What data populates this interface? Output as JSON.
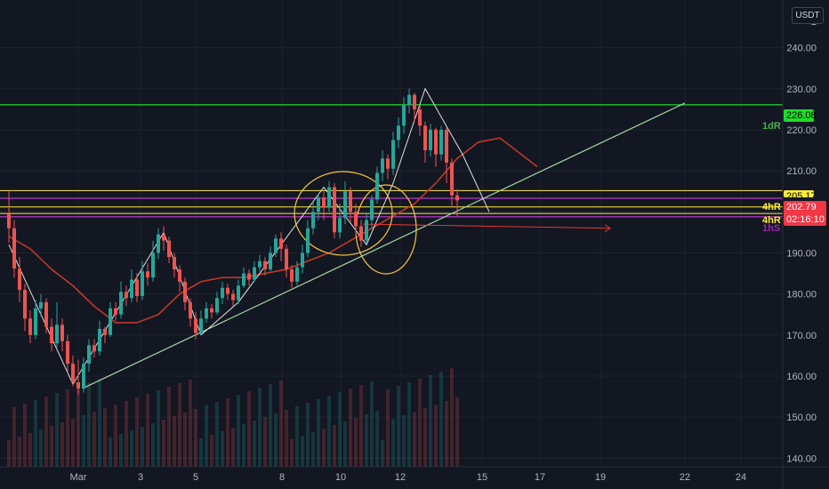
{
  "quote_currency": "USDT",
  "chart_data": {
    "type": "candlestick",
    "y_axis": {
      "min": 140,
      "max": 250,
      "ticks": [
        140,
        150,
        160,
        170,
        180,
        190,
        200,
        210,
        220,
        230,
        240
      ],
      "tick_labels": [
        "140.00",
        "150.00",
        "160.00",
        "170.00",
        "180.00",
        "190.00",
        "200.00",
        "210.00",
        "220.00",
        "230.00",
        "240.00"
      ],
      "partial_top_label": "2"
    },
    "x_axis": {
      "labels": [
        "Mar",
        "3",
        "5",
        "8",
        "10",
        "12",
        "15",
        "17",
        "19",
        "22",
        "24"
      ]
    },
    "levels": [
      {
        "price": 226.08,
        "label": "226.08",
        "name": "1dR",
        "color": "#1fdb2a"
      },
      {
        "price": 205.17,
        "label": "205.17",
        "color": "#ffeb3b"
      },
      {
        "price": 203.3,
        "name": "4hR",
        "color": "#e040fb"
      },
      {
        "price": 201.2,
        "color": "#ffeb3b"
      },
      {
        "price": 199.6,
        "name": "4hR",
        "color": "#ffeb3b"
      },
      {
        "price": 198.8,
        "name": "1hS",
        "color": "#e040fb"
      }
    ],
    "current_price": "202.79",
    "countdown": "02:16:10",
    "candles": [
      [
        199.5,
        196.0,
        205.0,
        192.5
      ],
      [
        196.0,
        186.2,
        198.0,
        184.0
      ],
      [
        186.2,
        181.0,
        189.0,
        178.0
      ],
      [
        181.0,
        174.0,
        182.5,
        171.0
      ],
      [
        174.0,
        170.0,
        176.0,
        168.0
      ],
      [
        170.0,
        176.5,
        178.5,
        169.0
      ],
      [
        176.5,
        178.0,
        180.0,
        174.5
      ],
      [
        178.0,
        172.0,
        179.0,
        170.5
      ],
      [
        172.0,
        168.0,
        174.0,
        166.0
      ],
      [
        168.0,
        172.5,
        178.0,
        167.0
      ],
      [
        172.5,
        168.5,
        174.0,
        166.0
      ],
      [
        168.5,
        163.0,
        170.0,
        161.0
      ],
      [
        163.0,
        158.5,
        165.0,
        157.5
      ],
      [
        158.5,
        157.0,
        164.0,
        155.5
      ],
      [
        157.0,
        163.0,
        164.5,
        156.0
      ],
      [
        163.0,
        167.5,
        169.0,
        161.0
      ],
      [
        167.5,
        166.0,
        169.0,
        164.5
      ],
      [
        166.0,
        171.5,
        173.5,
        165.0
      ],
      [
        171.5,
        170.0,
        172.0,
        168.0
      ],
      [
        170.0,
        176.5,
        178.0,
        169.5
      ],
      [
        176.5,
        175.0,
        178.0,
        173.5
      ],
      [
        175.0,
        180.5,
        183.0,
        174.0
      ],
      [
        180.5,
        179.0,
        182.0,
        177.0
      ],
      [
        179.0,
        183.5,
        186.0,
        178.0
      ],
      [
        183.5,
        179.5,
        185.0,
        178.0
      ],
      [
        179.5,
        185.5,
        188.0,
        178.5
      ],
      [
        185.5,
        184.0,
        187.5,
        182.0
      ],
      [
        184.0,
        190.0,
        193.0,
        183.0
      ],
      [
        190.0,
        194.5,
        196.0,
        188.5
      ],
      [
        194.5,
        193.0,
        196.5,
        190.5
      ],
      [
        193.0,
        189.0,
        194.0,
        187.5
      ],
      [
        189.0,
        186.0,
        190.0,
        184.0
      ],
      [
        186.0,
        183.0,
        187.0,
        180.5
      ],
      [
        183.0,
        178.0,
        184.0,
        176.0
      ],
      [
        178.0,
        174.0,
        179.0,
        172.0
      ],
      [
        174.0,
        170.5,
        175.5,
        169.0
      ],
      [
        170.5,
        174.0,
        176.0,
        170.0
      ],
      [
        174.0,
        176.5,
        178.0,
        173.0
      ],
      [
        176.5,
        175.5,
        177.5,
        174.0
      ],
      [
        175.5,
        179.0,
        180.5,
        175.0
      ],
      [
        179.0,
        181.5,
        183.0,
        177.5
      ],
      [
        181.5,
        180.0,
        182.5,
        178.5
      ],
      [
        180.0,
        178.5,
        181.0,
        177.0
      ],
      [
        178.5,
        182.0,
        183.5,
        177.5
      ],
      [
        182.0,
        185.0,
        186.5,
        181.5
      ],
      [
        185.0,
        183.5,
        186.0,
        182.0
      ],
      [
        183.5,
        186.5,
        188.0,
        183.0
      ],
      [
        186.5,
        188.0,
        189.5,
        185.5
      ],
      [
        188.0,
        186.0,
        189.0,
        184.5
      ],
      [
        186.0,
        190.0,
        191.5,
        185.5
      ],
      [
        190.0,
        193.5,
        194.5,
        189.0
      ],
      [
        193.5,
        191.0,
        195.0,
        188.0
      ],
      [
        191.0,
        186.0,
        192.0,
        184.0
      ],
      [
        186.0,
        183.0,
        187.0,
        181.5
      ],
      [
        183.0,
        186.5,
        188.0,
        182.0
      ],
      [
        186.5,
        190.0,
        192.0,
        185.0
      ],
      [
        190.0,
        196.0,
        198.0,
        189.0
      ],
      [
        196.0,
        200.0,
        202.5,
        194.5
      ],
      [
        200.0,
        203.5,
        204.5,
        198.0
      ],
      [
        203.5,
        201.0,
        205.0,
        198.0
      ],
      [
        201.0,
        206.0,
        207.5,
        200.0
      ],
      [
        206.0,
        195.0,
        207.0,
        193.5
      ],
      [
        195.0,
        198.5,
        202.0,
        193.5
      ],
      [
        198.5,
        205.0,
        207.5,
        197.0
      ],
      [
        205.0,
        200.0,
        206.0,
        197.5
      ],
      [
        200.0,
        196.5,
        202.0,
        194.0
      ],
      [
        196.5,
        193.0,
        198.0,
        191.5
      ],
      [
        193.0,
        198.0,
        199.5,
        192.5
      ],
      [
        198.0,
        203.0,
        204.0,
        196.0
      ],
      [
        203.0,
        209.5,
        211.0,
        202.0
      ],
      [
        209.5,
        213.0,
        215.0,
        207.5
      ],
      [
        213.0,
        210.5,
        214.0,
        208.0
      ],
      [
        210.5,
        217.5,
        219.5,
        209.0
      ],
      [
        217.5,
        221.0,
        223.0,
        215.5
      ],
      [
        221.0,
        226.0,
        228.0,
        219.0
      ],
      [
        226.0,
        228.5,
        230.0,
        224.0
      ],
      [
        228.5,
        225.0,
        229.0,
        222.0
      ],
      [
        225.0,
        221.0,
        226.0,
        218.5
      ],
      [
        221.0,
        215.0,
        222.0,
        212.0
      ],
      [
        215.0,
        220.0,
        221.5,
        213.5
      ],
      [
        220.0,
        214.0,
        220.5,
        211.0
      ],
      [
        214.0,
        220.0,
        221.0,
        212.5
      ],
      [
        220.0,
        212.0,
        220.5,
        207.0
      ],
      [
        212.0,
        204.0,
        213.0,
        201.0
      ],
      [
        204.0,
        202.79,
        205.5,
        199.0
      ]
    ],
    "moving_average": [
      [
        0,
        194
      ],
      [
        4,
        191
      ],
      [
        8,
        186
      ],
      [
        12,
        182
      ],
      [
        16,
        177
      ],
      [
        20,
        173
      ],
      [
        24,
        173
      ],
      [
        28,
        175
      ],
      [
        32,
        180
      ],
      [
        36,
        183
      ],
      [
        40,
        184
      ],
      [
        44,
        184
      ],
      [
        48,
        185
      ],
      [
        52,
        186
      ],
      [
        56,
        188
      ],
      [
        60,
        190
      ],
      [
        64,
        193
      ],
      [
        68,
        196
      ],
      [
        72,
        199
      ],
      [
        76,
        202
      ],
      [
        80,
        207
      ],
      [
        84,
        213
      ],
      [
        88,
        217
      ],
      [
        92,
        218
      ],
      [
        96,
        214
      ],
      [
        99,
        211
      ]
    ],
    "trendline": [
      [
        13,
        157
      ],
      [
        99,
        226.5
      ]
    ],
    "projection_arrow": [
      [
        58,
        197
      ],
      [
        86,
        196
      ]
    ],
    "swing_path": [
      [
        0,
        192
      ],
      [
        12,
        158
      ],
      [
        29,
        195
      ],
      [
        36,
        170
      ],
      [
        43,
        178
      ],
      [
        59,
        206
      ],
      [
        67,
        192
      ],
      [
        72,
        207
      ],
      [
        78,
        230
      ],
      [
        85,
        214
      ],
      [
        90,
        200
      ]
    ]
  }
}
